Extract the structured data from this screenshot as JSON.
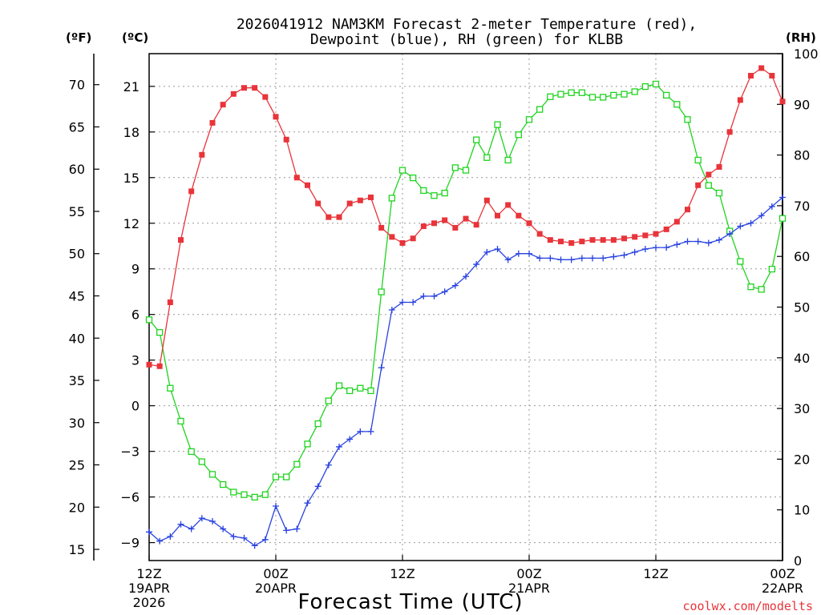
{
  "chart_data": {
    "type": "line",
    "title": "2026041912 NAM3KM Forecast 2-meter Temperature (red),",
    "subtitle": "Dewpoint (blue), RH (green) for KLBB",
    "xlabel": "Forecast Time (UTC)",
    "credit": "coolwx.com/modelts",
    "units": {
      "left_outer": "(ºF)",
      "left_inner": "(ºC)",
      "right": "(RH)"
    },
    "x_range_hours": [
      0,
      60
    ],
    "y_celsius_range": [
      -10.18,
      23.15
    ],
    "y_rh_range": [
      0,
      100
    ],
    "fahrenheit_ticks": [
      15,
      20,
      25,
      30,
      35,
      40,
      45,
      50,
      55,
      60,
      65,
      70
    ],
    "celsius_ticks": [
      -9,
      -6,
      -3,
      0,
      3,
      6,
      9,
      12,
      15,
      18,
      21
    ],
    "rh_ticks": [
      0,
      10,
      20,
      30,
      40,
      50,
      60,
      70,
      80,
      90,
      100
    ],
    "x_ticks": [
      {
        "hour": 0,
        "line1": "12Z",
        "line2": "19APR",
        "line3": "2026"
      },
      {
        "hour": 12,
        "line1": "00Z",
        "line2": "20APR",
        "line3": ""
      },
      {
        "hour": 24,
        "line1": "12Z",
        "line2": "",
        "line3": ""
      },
      {
        "hour": 36,
        "line1": "00Z",
        "line2": "21APR",
        "line3": ""
      },
      {
        "hour": 48,
        "line1": "12Z",
        "line2": "",
        "line3": ""
      },
      {
        "hour": 60,
        "line1": "00Z",
        "line2": "22APR",
        "line3": ""
      }
    ],
    "series": [
      {
        "name": "Temperature (°C)",
        "color": "#e8343a",
        "marker": "filled-square",
        "axis": "celsius",
        "values": [
          2.7,
          2.6,
          6.8,
          10.9,
          14.1,
          16.5,
          18.6,
          19.8,
          20.5,
          20.9,
          20.9,
          20.3,
          19.0,
          17.5,
          15.0,
          14.5,
          13.3,
          12.4,
          12.4,
          13.3,
          13.5,
          13.7,
          11.7,
          11.1,
          10.7,
          11.0,
          11.8,
          12.0,
          12.2,
          11.7,
          12.3,
          11.9,
          13.5,
          12.5,
          13.2,
          12.5,
          12.0,
          11.3,
          10.9,
          10.8,
          10.7,
          10.8,
          10.9,
          10.9,
          10.9,
          11.0,
          11.1,
          11.2,
          11.3,
          11.6,
          12.1,
          12.9,
          14.5,
          15.2,
          15.7,
          18.0,
          20.1,
          21.7,
          22.2,
          21.7,
          20.0
        ]
      },
      {
        "name": "Dewpoint (°C)",
        "color": "#2942e0",
        "marker": "plus",
        "axis": "celsius",
        "values": [
          -8.3,
          -8.9,
          -8.6,
          -7.8,
          -8.1,
          -7.4,
          -7.6,
          -8.1,
          -8.6,
          -8.7,
          -9.2,
          -8.8,
          -6.6,
          -8.2,
          -8.1,
          -6.4,
          -5.3,
          -3.9,
          -2.7,
          -2.2,
          -1.7,
          -1.7,
          2.5,
          6.3,
          6.8,
          6.8,
          7.2,
          7.2,
          7.5,
          7.9,
          8.5,
          9.3,
          10.1,
          10.3,
          9.6,
          10.0,
          10.0,
          9.7,
          9.7,
          9.6,
          9.6,
          9.7,
          9.7,
          9.7,
          9.8,
          9.9,
          10.1,
          10.3,
          10.4,
          10.4,
          10.6,
          10.8,
          10.8,
          10.7,
          10.9,
          11.3,
          11.8,
          12.0,
          12.5,
          13.1,
          13.7
        ]
      },
      {
        "name": "RH (%)",
        "color": "#1fd41f",
        "marker": "open-square",
        "axis": "rh",
        "values": [
          47.5,
          45.0,
          34.0,
          27.5,
          21.5,
          19.5,
          17.0,
          15.0,
          13.5,
          13.0,
          12.5,
          13.0,
          16.5,
          16.5,
          19.0,
          23.0,
          27.0,
          31.5,
          34.5,
          33.5,
          34.0,
          33.5,
          53.0,
          71.5,
          77.0,
          75.5,
          73.0,
          72.0,
          72.5,
          77.5,
          77.0,
          83.0,
          79.5,
          86.0,
          79.0,
          84.0,
          87.0,
          89.0,
          91.5,
          92.0,
          92.3,
          92.3,
          91.4,
          91.4,
          91.8,
          92.0,
          92.5,
          93.5,
          94.0,
          91.8,
          90.0,
          87.0,
          79.0,
          74.0,
          72.5,
          65.0,
          59.0,
          54.0,
          53.5,
          57.5,
          67.5
        ]
      }
    ]
  }
}
